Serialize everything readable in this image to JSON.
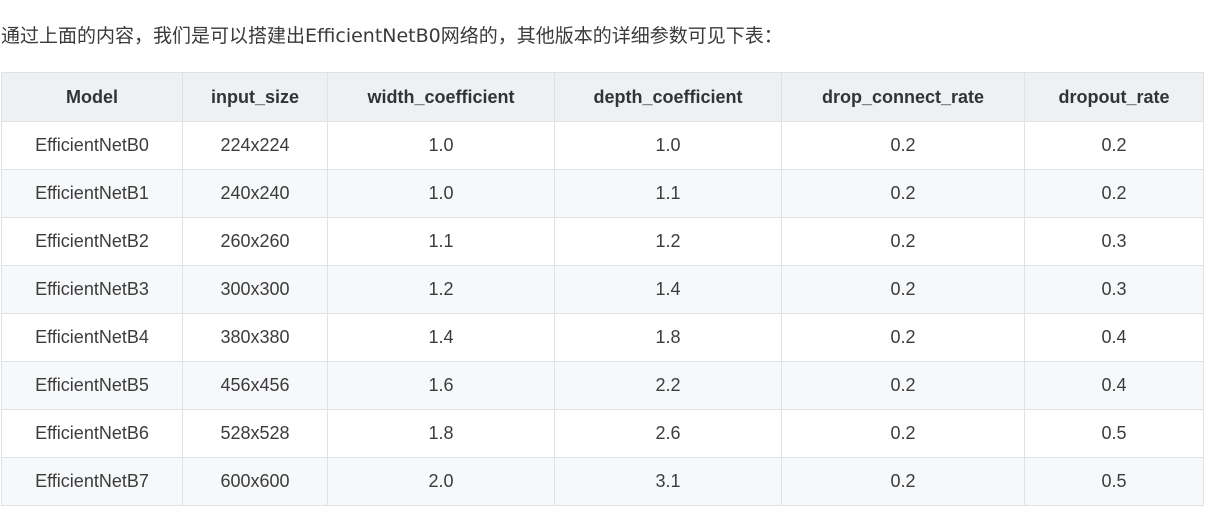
{
  "intro_text": "通过上面的内容，我们是可以搭建出EfficientNetB0网络的，其他版本的详细参数可见下表：",
  "table": {
    "headers": [
      "Model",
      "input_size",
      "width_coefficient",
      "depth_coefficient",
      "drop_connect_rate",
      "dropout_rate"
    ],
    "rows": [
      [
        "EfficientNetB0",
        "224x224",
        "1.0",
        "1.0",
        "0.2",
        "0.2"
      ],
      [
        "EfficientNetB1",
        "240x240",
        "1.0",
        "1.1",
        "0.2",
        "0.2"
      ],
      [
        "EfficientNetB2",
        "260x260",
        "1.1",
        "1.2",
        "0.2",
        "0.3"
      ],
      [
        "EfficientNetB3",
        "300x300",
        "1.2",
        "1.4",
        "0.2",
        "0.3"
      ],
      [
        "EfficientNetB4",
        "380x380",
        "1.4",
        "1.8",
        "0.2",
        "0.4"
      ],
      [
        "EfficientNetB5",
        "456x456",
        "1.6",
        "2.2",
        "0.2",
        "0.4"
      ],
      [
        "EfficientNetB6",
        "528x528",
        "1.8",
        "2.6",
        "0.2",
        "0.5"
      ],
      [
        "EfficientNetB7",
        "600x600",
        "2.0",
        "3.1",
        "0.2",
        "0.5"
      ]
    ]
  }
}
